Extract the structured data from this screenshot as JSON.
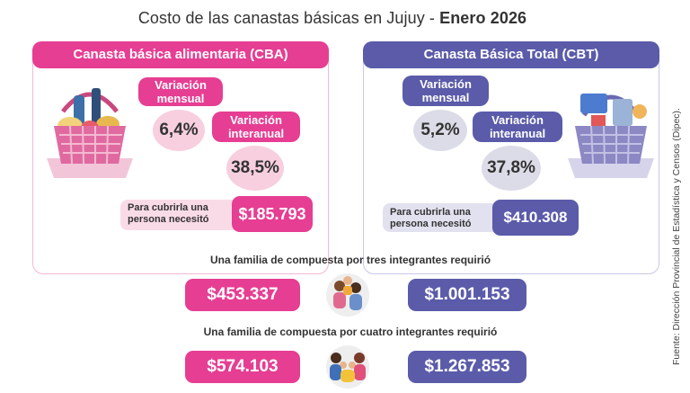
{
  "title": {
    "prefix": "Costo de las canastas básicas en Jujuy - ",
    "period": "Enero 2026"
  },
  "cba": {
    "header": "Canasta básica alimentaria (CBA)",
    "monthly_label": "Variación mensual",
    "monthly_value": "6,4%",
    "annual_label": "Variación interanual",
    "annual_value": "38,5%",
    "person_label": "Para cubrirla una persona necesitó",
    "person_value": "$185.793",
    "family3_value": "$453.337",
    "family4_value": "$574.103"
  },
  "cbt": {
    "header": "Canasta Básica Total (CBT)",
    "monthly_label": "Variación mensual",
    "monthly_value": "5,2%",
    "annual_label": "Variación interanual",
    "annual_value": "37,8%",
    "person_label": "Para cubrirla una persona necesitó",
    "person_value": "$410.308",
    "family3_value": "$1.001.153",
    "family4_value": "$1.267.853"
  },
  "family3_label": "Una familia de compuesta por tres integrantes requirió",
  "family4_label": "Una familia de compuesta por cuatro integrantes requirió",
  "source": "Fuente: Dirección Provincial de Estadística y Censos (Dipec).",
  "colors": {
    "cba": "#e63e93",
    "cbt": "#5b5baa"
  },
  "icons": [
    "food-basket-icon",
    "goods-basket-icon",
    "family-three-icon",
    "family-four-icon"
  ]
}
